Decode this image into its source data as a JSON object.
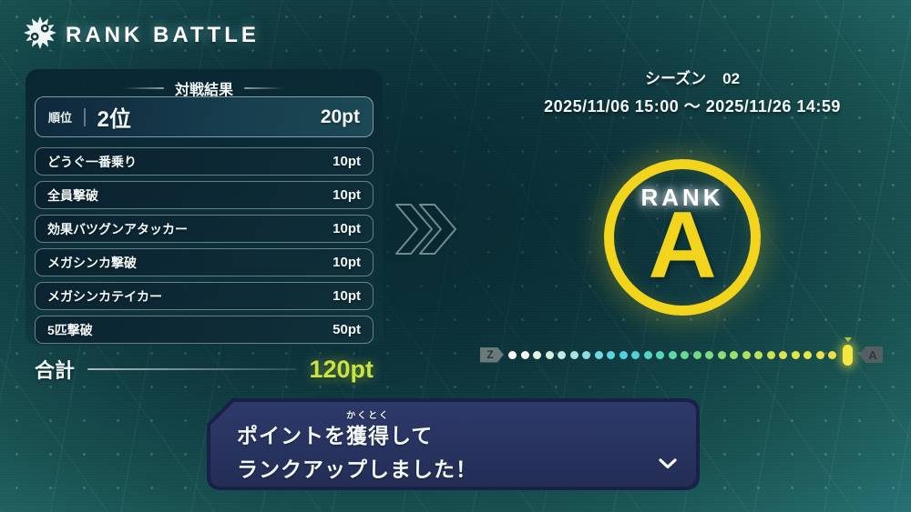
{
  "title": {
    "text": "RANK BATTLE"
  },
  "season": {
    "label": "シーズン",
    "number": "02",
    "period": "2025/11/06 15:00 ～ 2025/11/26 14:59"
  },
  "results": {
    "header": "対戦結果",
    "rank_row": {
      "label": "順位",
      "value": "2位",
      "points": "20pt"
    },
    "rows": [
      {
        "label": "どうぐ一番乗り",
        "points": "10pt"
      },
      {
        "label": "全員撃破",
        "points": "10pt"
      },
      {
        "label": "効果バツグンアタッカー",
        "points": "10pt"
      },
      {
        "label": "メガシンカ撃破",
        "points": "10pt"
      },
      {
        "label": "メガシンカテイカー",
        "points": "10pt"
      },
      {
        "label": "5匹撃破",
        "points": "50pt"
      }
    ],
    "total": {
      "label": "合計",
      "points": "120pt",
      "points_color": "#c9e341"
    }
  },
  "rank_badge": {
    "word": "RANK",
    "grade": "A",
    "ring_color": "#f2d41c"
  },
  "progress": {
    "start_label": "Z",
    "end_label": "A",
    "marker_color": "#f6e73f",
    "dots": [
      "#ffffff",
      "#f6fbf2",
      "#e4f5e6",
      "#d3f0df",
      "#bfeadd",
      "#a5e5e0",
      "#8adfe2",
      "#6fd9e4",
      "#5cd4e2",
      "#52d2de",
      "#4fd2d6",
      "#52d4c8",
      "#57d6b6",
      "#5dd8a4",
      "#64da93",
      "#6edc86",
      "#7bdd7d",
      "#8adf74",
      "#9ae06c",
      "#abe163",
      "#bce25b",
      "#cce354",
      "#dae44e",
      "#e4e449",
      "#eae546",
      "#ece345",
      "#ece144"
    ]
  },
  "dialog": {
    "line1_pre": "ポイントを",
    "ruby_base": "獲得",
    "ruby_text": "かくとく",
    "line1_post": "して",
    "line2": "ランクアップしました！"
  },
  "icons": {
    "header_badge": "starburst-badge",
    "transition": "double-chevron-right",
    "dialog_continue": "chevron-down"
  }
}
